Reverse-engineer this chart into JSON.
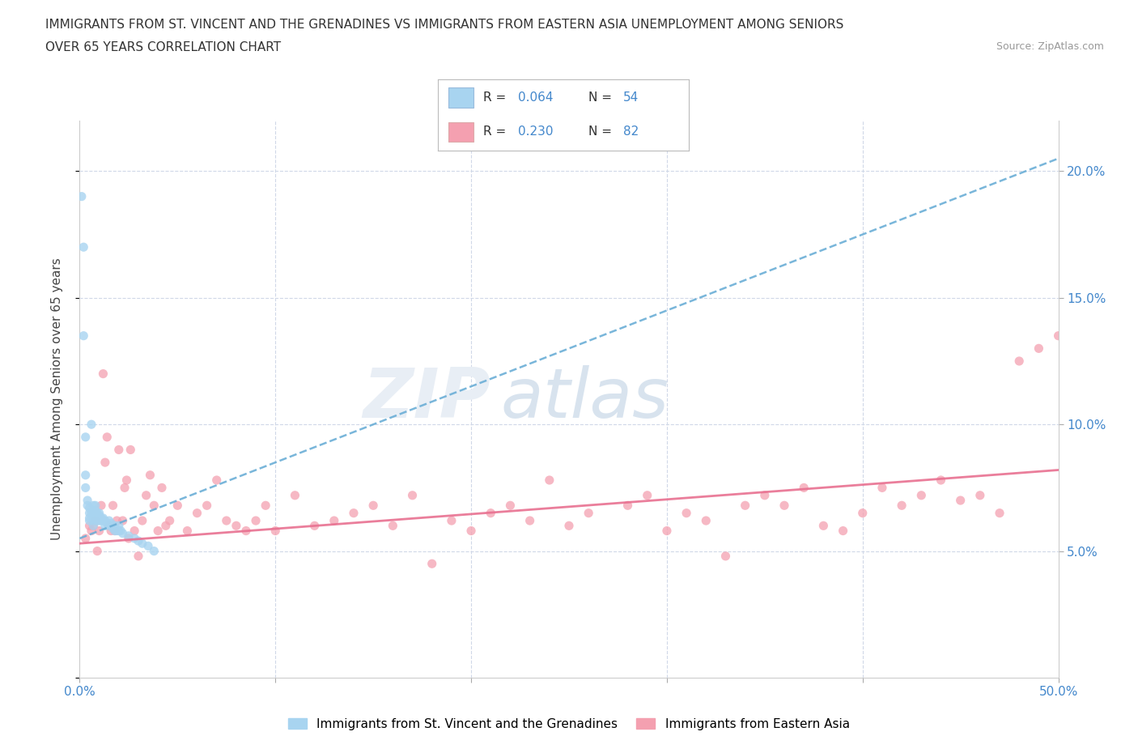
{
  "title_line1": "IMMIGRANTS FROM ST. VINCENT AND THE GRENADINES VS IMMIGRANTS FROM EASTERN ASIA UNEMPLOYMENT AMONG SENIORS",
  "title_line2": "OVER 65 YEARS CORRELATION CHART",
  "source": "Source: ZipAtlas.com",
  "ylabel": "Unemployment Among Seniors over 65 years",
  "xlim": [
    0.0,
    0.5
  ],
  "ylim": [
    0.0,
    0.22
  ],
  "xticks": [
    0.0,
    0.1,
    0.2,
    0.3,
    0.4,
    0.5
  ],
  "xticklabels": [
    "0.0%",
    "",
    "",
    "",
    "",
    "50.0%"
  ],
  "yticks_right": [
    0.05,
    0.1,
    0.15,
    0.2
  ],
  "ytick_right_labels": [
    "5.0%",
    "10.0%",
    "15.0%",
    "20.0%"
  ],
  "legend_label1": "Immigrants from St. Vincent and the Grenadines",
  "legend_label2": "Immigrants from Eastern Asia",
  "R1": 0.064,
  "N1": 54,
  "R2": 0.23,
  "N2": 82,
  "color1": "#a8d4f0",
  "color2": "#f4a0b0",
  "trendline1_color": "#6baed6",
  "trendline2_color": "#e87090",
  "watermark_zip": "ZIP",
  "watermark_atlas": "atlas",
  "background_color": "#ffffff",
  "grid_color": "#d0d8e8",
  "sv_x": [
    0.001,
    0.002,
    0.002,
    0.003,
    0.003,
    0.003,
    0.004,
    0.004,
    0.005,
    0.005,
    0.005,
    0.005,
    0.006,
    0.006,
    0.007,
    0.007,
    0.007,
    0.007,
    0.007,
    0.008,
    0.008,
    0.008,
    0.008,
    0.009,
    0.009,
    0.009,
    0.01,
    0.01,
    0.01,
    0.011,
    0.011,
    0.012,
    0.012,
    0.013,
    0.013,
    0.014,
    0.015,
    0.015,
    0.016,
    0.017,
    0.017,
    0.018,
    0.018,
    0.019,
    0.02,
    0.02,
    0.021,
    0.022,
    0.025,
    0.028,
    0.03,
    0.032,
    0.035,
    0.038
  ],
  "sv_y": [
    0.19,
    0.17,
    0.135,
    0.095,
    0.08,
    0.075,
    0.07,
    0.068,
    0.067,
    0.065,
    0.063,
    0.062,
    0.1,
    0.065,
    0.068,
    0.065,
    0.063,
    0.062,
    0.06,
    0.068,
    0.066,
    0.065,
    0.063,
    0.065,
    0.064,
    0.062,
    0.065,
    0.064,
    0.062,
    0.063,
    0.062,
    0.063,
    0.062,
    0.062,
    0.06,
    0.061,
    0.062,
    0.06,
    0.061,
    0.06,
    0.059,
    0.06,
    0.058,
    0.058,
    0.06,
    0.058,
    0.058,
    0.057,
    0.056,
    0.055,
    0.054,
    0.053,
    0.052,
    0.05
  ],
  "ea_x": [
    0.003,
    0.005,
    0.006,
    0.007,
    0.008,
    0.009,
    0.01,
    0.011,
    0.012,
    0.013,
    0.014,
    0.015,
    0.016,
    0.017,
    0.018,
    0.019,
    0.02,
    0.022,
    0.023,
    0.024,
    0.025,
    0.026,
    0.028,
    0.03,
    0.032,
    0.034,
    0.036,
    0.038,
    0.04,
    0.042,
    0.044,
    0.046,
    0.05,
    0.055,
    0.06,
    0.065,
    0.07,
    0.075,
    0.08,
    0.085,
    0.09,
    0.095,
    0.1,
    0.11,
    0.12,
    0.13,
    0.14,
    0.15,
    0.16,
    0.17,
    0.18,
    0.19,
    0.2,
    0.21,
    0.22,
    0.23,
    0.24,
    0.25,
    0.26,
    0.28,
    0.29,
    0.3,
    0.31,
    0.32,
    0.33,
    0.34,
    0.35,
    0.36,
    0.37,
    0.38,
    0.39,
    0.4,
    0.41,
    0.42,
    0.43,
    0.44,
    0.45,
    0.46,
    0.47,
    0.48,
    0.49,
    0.5
  ],
  "ea_y": [
    0.055,
    0.06,
    0.058,
    0.06,
    0.062,
    0.05,
    0.058,
    0.068,
    0.12,
    0.085,
    0.095,
    0.06,
    0.058,
    0.068,
    0.058,
    0.062,
    0.09,
    0.062,
    0.075,
    0.078,
    0.055,
    0.09,
    0.058,
    0.048,
    0.062,
    0.072,
    0.08,
    0.068,
    0.058,
    0.075,
    0.06,
    0.062,
    0.068,
    0.058,
    0.065,
    0.068,
    0.078,
    0.062,
    0.06,
    0.058,
    0.062,
    0.068,
    0.058,
    0.072,
    0.06,
    0.062,
    0.065,
    0.068,
    0.06,
    0.072,
    0.045,
    0.062,
    0.058,
    0.065,
    0.068,
    0.062,
    0.078,
    0.06,
    0.065,
    0.068,
    0.072,
    0.058,
    0.065,
    0.062,
    0.048,
    0.068,
    0.072,
    0.068,
    0.075,
    0.06,
    0.058,
    0.065,
    0.075,
    0.068,
    0.072,
    0.078,
    0.07,
    0.072,
    0.065,
    0.125,
    0.13,
    0.135
  ]
}
